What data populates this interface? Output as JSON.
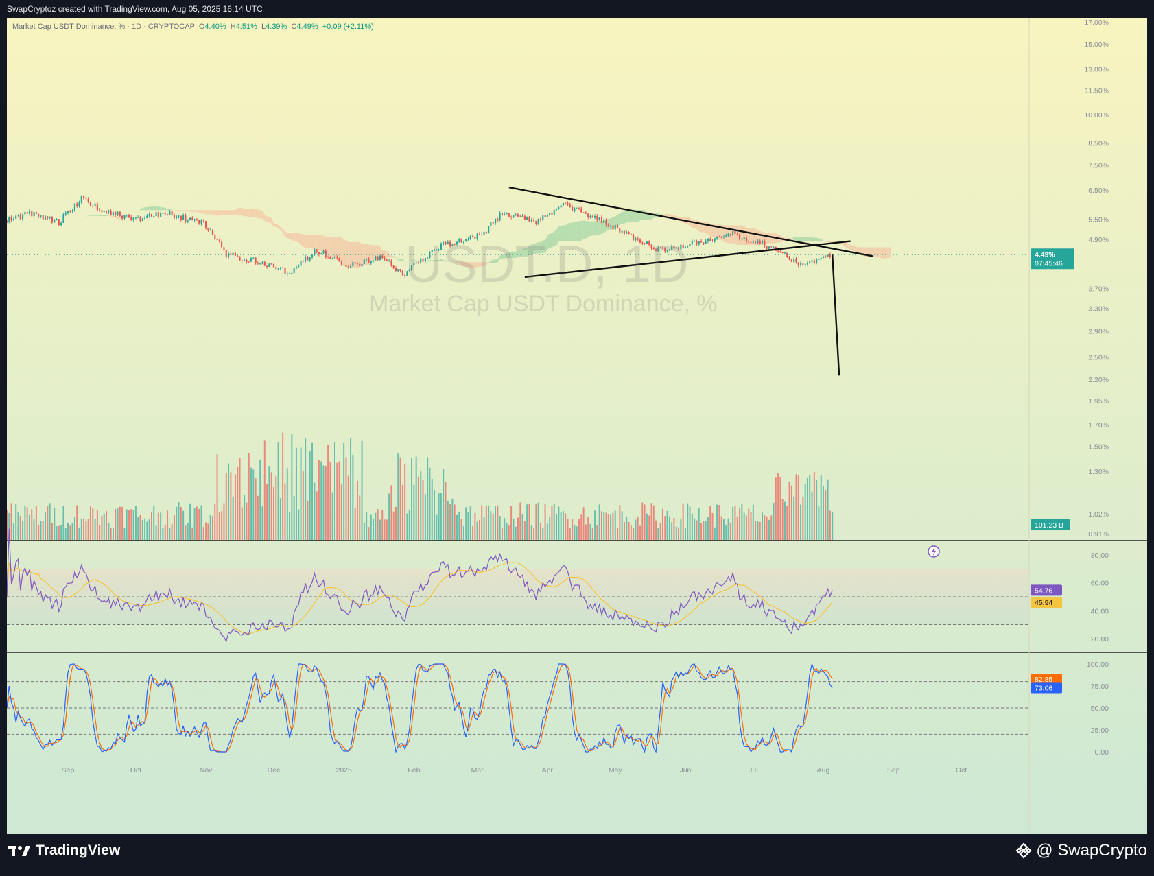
{
  "header": {
    "credit": "SwapCryptoz created with TradingView.com, Aug 05, 2025 16:14 UTC"
  },
  "legend": {
    "title": "Market Cap USDT Dominance, % · 1D · CRYPTOCAP",
    "o_label": "O",
    "o": "4.40%",
    "h_label": "H",
    "h": "4.51%",
    "l_label": "L",
    "l": "4.39%",
    "c_label": "C",
    "c": "4.49%",
    "change": "+0.09 (+2.11%)"
  },
  "watermark": {
    "symbol": "USDT.D, 1D",
    "name": "Market Cap USDT Dominance, %"
  },
  "colors": {
    "up": "#26a69a",
    "down": "#ef5350",
    "rsi": "#7e57c2",
    "rsi_ma": "#f5c542",
    "k": "#2962ff",
    "d": "#ff6d00",
    "cloud_bull": "#a5d6a7",
    "cloud_bear": "#f4c7a6"
  },
  "price_axis": {
    "ticks": [
      "17.00%",
      "15.00%",
      "13.00%",
      "11.50%",
      "10.00%",
      "8.50%",
      "7.50%",
      "6.50%",
      "5.50%",
      "4.90%",
      "3.70%",
      "3.30%",
      "2.90%",
      "2.50%",
      "2.20%",
      "1.95%",
      "1.70%",
      "1.50%",
      "1.30%",
      "1.02%",
      "0.91%"
    ],
    "last_price": "4.49%",
    "countdown": "07:45:46",
    "volume_label": "101.23 B"
  },
  "rsi_axis": {
    "ticks": [
      "80.00",
      "60.00",
      "40.00",
      "20.00"
    ],
    "rsi_value": "54.76",
    "ma_value": "45.94"
  },
  "stoch_axis": {
    "ticks": [
      "100.00",
      "75.00",
      "50.00",
      "25.00",
      "0.00"
    ],
    "d_value": "82.85",
    "k_value": "73.06"
  },
  "time_axis": {
    "labels": [
      "Sep",
      "Oct",
      "Nov",
      "Dec",
      "2025",
      "Feb",
      "Mar",
      "Apr",
      "May",
      "Jun",
      "Jul",
      "Aug",
      "Sep",
      "Oct"
    ]
  },
  "chart_data": {
    "type": "candlestick",
    "symbol": "USDT.D",
    "interval": "1D",
    "scale": "log",
    "x_range": [
      "2024-08-05",
      "2025-10-31"
    ],
    "y_range_pct": [
      0.85,
      17.0
    ],
    "last": {
      "date": "2025-08-05",
      "open": 4.4,
      "high": 4.51,
      "low": 4.39,
      "close": 4.49,
      "change": 0.09,
      "change_pct": 2.11
    },
    "close_anchors": [
      {
        "date": "2024-08-05",
        "v": 5.45
      },
      {
        "date": "2024-08-15",
        "v": 5.7
      },
      {
        "date": "2024-08-28",
        "v": 5.4
      },
      {
        "date": "2024-09-07",
        "v": 6.2
      },
      {
        "date": "2024-09-17",
        "v": 5.75
      },
      {
        "date": "2024-10-01",
        "v": 5.5
      },
      {
        "date": "2024-10-15",
        "v": 5.7
      },
      {
        "date": "2024-10-31",
        "v": 5.35
      },
      {
        "date": "2024-11-10",
        "v": 4.5
      },
      {
        "date": "2024-11-25",
        "v": 4.3
      },
      {
        "date": "2024-12-08",
        "v": 4.05
      },
      {
        "date": "2024-12-20",
        "v": 4.6
      },
      {
        "date": "2025-01-03",
        "v": 4.2
      },
      {
        "date": "2025-01-18",
        "v": 4.45
      },
      {
        "date": "2025-01-27",
        "v": 4.0
      },
      {
        "date": "2025-02-12",
        "v": 4.7
      },
      {
        "date": "2025-03-03",
        "v": 5.0
      },
      {
        "date": "2025-03-12",
        "v": 5.7
      },
      {
        "date": "2025-03-27",
        "v": 5.4
      },
      {
        "date": "2025-04-08",
        "v": 6.0
      },
      {
        "date": "2025-04-22",
        "v": 5.55
      },
      {
        "date": "2025-05-05",
        "v": 5.1
      },
      {
        "date": "2025-05-20",
        "v": 4.6
      },
      {
        "date": "2025-06-02",
        "v": 4.75
      },
      {
        "date": "2025-06-12",
        "v": 4.85
      },
      {
        "date": "2025-06-22",
        "v": 5.05
      },
      {
        "date": "2025-07-08",
        "v": 4.7
      },
      {
        "date": "2025-07-22",
        "v": 4.25
      },
      {
        "date": "2025-07-30",
        "v": 4.35
      },
      {
        "date": "2025-08-05",
        "v": 4.49
      }
    ],
    "volume_billions_last": 101.23,
    "rsi": {
      "last": 54.76,
      "ma_last": 45.94,
      "levels": [
        70,
        50,
        30
      ]
    },
    "stoch_rsi": {
      "d_last": 82.85,
      "k_last": 73.06,
      "levels": [
        80,
        50,
        20
      ]
    },
    "drawings": [
      {
        "type": "trendline",
        "from": {
          "date": "2025-03-15",
          "v": 6.6
        },
        "to": {
          "date": "2025-08-23",
          "v": 4.45
        }
      },
      {
        "type": "trendline",
        "from": {
          "date": "2025-03-22",
          "v": 3.95
        },
        "to": {
          "date": "2025-08-13",
          "v": 4.85
        }
      },
      {
        "type": "trendline",
        "from": {
          "date": "2025-08-05",
          "v": 4.49
        },
        "to": {
          "date": "2025-08-08",
          "v": 2.25
        }
      }
    ]
  }
}
